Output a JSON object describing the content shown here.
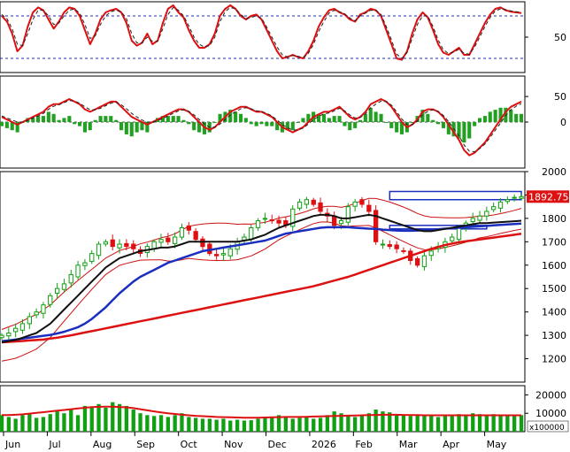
{
  "chart_data": {
    "type": "line",
    "x_labels": [
      "Jun",
      "Jul",
      "Aug",
      "Sep",
      "Oct",
      "Nov",
      "Dec",
      "2026",
      "Feb",
      "Mar",
      "Apr",
      "May"
    ],
    "panels": {
      "stochastic": {
        "type": "line",
        "ylim": [
          0,
          100
        ],
        "yticks": [
          {
            "v": 50,
            "label": "50"
          }
        ],
        "levels": [
          80,
          20
        ],
        "series": [
          {
            "color": "#dd1111",
            "values": [
              80,
              72,
              55,
              30,
              38,
              65,
              85,
              92,
              88,
              75,
              62,
              72,
              85,
              92,
              90,
              80,
              60,
              40,
              55,
              75,
              85,
              88,
              90,
              85,
              70,
              45,
              38,
              42,
              55,
              40,
              45,
              70,
              90,
              95,
              85,
              78,
              60,
              45,
              35,
              35,
              40,
              55,
              80,
              90,
              95,
              90,
              80,
              75,
              80,
              82,
              75,
              60,
              45,
              30,
              20,
              22,
              25,
              22,
              20,
              30,
              45,
              65,
              78,
              88,
              90,
              85,
              82,
              75,
              72,
              82,
              85,
              90,
              88,
              80,
              60,
              40,
              20,
              18,
              30,
              55,
              75,
              85,
              78,
              60,
              40,
              28,
              25,
              30,
              35,
              25,
              25,
              40,
              55,
              70,
              82,
              90,
              92,
              88,
              86,
              85,
              84
            ]
          },
          {
            "color": "#222222",
            "dashed": true,
            "values": [
              82,
              76,
              62,
              40,
              38,
              55,
              75,
              88,
              88,
              80,
              68,
              70,
              80,
              88,
              90,
              84,
              68,
              48,
              52,
              68,
              80,
              86,
              88,
              86,
              76,
              55,
              42,
              42,
              50,
              44,
              44,
              62,
              82,
              92,
              88,
              80,
              66,
              50,
              40,
              36,
              38,
              50,
              72,
              86,
              92,
              90,
              82,
              76,
              78,
              80,
              77,
              64,
              50,
              36,
              25,
              22,
              24,
              23,
              21,
              27,
              40,
              58,
              72,
              84,
              88,
              86,
              83,
              77,
              73,
              80,
              84,
              88,
              88,
              82,
              65,
              46,
              26,
              20,
              28,
              48,
              68,
              80,
              80,
              65,
              46,
              32,
              27,
              29,
              33,
              27,
              26,
              36,
              50,
              65,
              78,
              87,
              90,
              89,
              87,
              86,
              85
            ]
          }
        ]
      },
      "macd": {
        "type": "line+bar",
        "ylim": [
          -90,
          90
        ],
        "yticks": [
          {
            "v": 50,
            "label": "50"
          },
          {
            "v": 0,
            "label": "0"
          }
        ],
        "zero_line": true,
        "series": [
          {
            "color": "#dd1111",
            "values": [
              10,
              5,
              0,
              -5,
              0,
              5,
              10,
              15,
              20,
              30,
              35,
              35,
              40,
              45,
              40,
              35,
              25,
              20,
              25,
              30,
              35,
              40,
              40,
              30,
              20,
              10,
              5,
              0,
              -5,
              0,
              5,
              10,
              15,
              20,
              25,
              25,
              20,
              10,
              0,
              -10,
              -15,
              -10,
              0,
              10,
              20,
              25,
              30,
              30,
              25,
              20,
              20,
              15,
              10,
              0,
              -10,
              -15,
              -20,
              -15,
              -10,
              0,
              10,
              15,
              20,
              20,
              25,
              30,
              20,
              10,
              5,
              10,
              20,
              35,
              40,
              45,
              40,
              30,
              15,
              0,
              -10,
              -5,
              5,
              20,
              25,
              25,
              20,
              10,
              -5,
              -20,
              -35,
              -55,
              -65,
              -60,
              -50,
              -40,
              -25,
              -10,
              5,
              20,
              30,
              35,
              40
            ]
          },
          {
            "color": "#222222",
            "dashed": true,
            "values": [
              12,
              8,
              4,
              0,
              0,
              3,
              8,
              12,
              17,
              25,
              31,
              34,
              38,
              42,
              41,
              37,
              30,
              24,
              24,
              27,
              32,
              37,
              39,
              34,
              26,
              17,
              10,
              4,
              0,
              0,
              3,
              7,
              12,
              17,
              22,
              24,
              21,
              14,
              5,
              -4,
              -10,
              -10,
              -4,
              5,
              14,
              20,
              26,
              28,
              26,
              22,
              21,
              17,
              12,
              4,
              -5,
              -11,
              -16,
              -15,
              -12,
              -4,
              5,
              11,
              16,
              18,
              22,
              27,
              22,
              14,
              8,
              9,
              16,
              28,
              35,
              41,
              40,
              33,
              20,
              6,
              -5,
              -5,
              2,
              14,
              21,
              24,
              21,
              13,
              1,
              -13,
              -27,
              -45,
              -57,
              -58,
              -52,
              -43,
              -30,
              -16,
              -2,
              13,
              24,
              31,
              36
            ]
          }
        ],
        "histogram_color": "#22a022"
      },
      "price": {
        "type": "candlestick",
        "ylim": [
          1100,
          2000
        ],
        "yticks": [
          1200,
          1300,
          1400,
          1500,
          1600,
          1700,
          1800,
          1900,
          2000
        ],
        "last_value": "1892.750",
        "close": [
          1300,
          1310,
          1330,
          1350,
          1380,
          1400,
          1430,
          1470,
          1500,
          1520,
          1560,
          1600,
          1610,
          1650,
          1690,
          1700,
          1680,
          1690,
          1680,
          1670,
          1650,
          1680,
          1700,
          1710,
          1700,
          1720,
          1760,
          1750,
          1710,
          1680,
          1650,
          1640,
          1650,
          1670,
          1700,
          1720,
          1760,
          1790,
          1800,
          1790,
          1780,
          1770,
          1840,
          1870,
          1880,
          1860,
          1830,
          1810,
          1770,
          1790,
          1850,
          1870,
          1860,
          1830,
          1700,
          1690,
          1680,
          1670,
          1660,
          1620,
          1600,
          1640,
          1660,
          1680,
          1700,
          1720,
          1760,
          1780,
          1800,
          1810,
          1830,
          1850,
          1870,
          1880,
          1890,
          1893
        ],
        "ma_black": [
          1270,
          1275,
          1280,
          1290,
          1300,
          1310,
          1330,
          1350,
          1380,
          1410,
          1440,
          1470,
          1500,
          1530,
          1560,
          1590,
          1610,
          1630,
          1640,
          1650,
          1660,
          1665,
          1670,
          1675,
          1675,
          1680,
          1690,
          1700,
          1700,
          1700,
          1700,
          1700,
          1700,
          1700,
          1700,
          1705,
          1710,
          1720,
          1730,
          1745,
          1760,
          1770,
          1780,
          1790,
          1800,
          1810,
          1815,
          1815,
          1810,
          1800,
          1800,
          1805,
          1810,
          1815,
          1810,
          1800,
          1790,
          1780,
          1770,
          1760,
          1750,
          1745,
          1745,
          1750,
          1755,
          1760,
          1765,
          1770,
          1775,
          1780,
          1780,
          1782,
          1784,
          1786,
          1788,
          1790
        ],
        "ma_blue": [
          1275,
          1278,
          1282,
          1286,
          1290,
          1294,
          1298,
          1302,
          1308,
          1315,
          1325,
          1335,
          1350,
          1370,
          1395,
          1420,
          1450,
          1480,
          1505,
          1530,
          1550,
          1565,
          1580,
          1595,
          1610,
          1620,
          1630,
          1640,
          1650,
          1660,
          1665,
          1670,
          1675,
          1680,
          1685,
          1690,
          1695,
          1700,
          1705,
          1715,
          1725,
          1735,
          1740,
          1745,
          1750,
          1755,
          1760,
          1762,
          1762,
          1762,
          1762,
          1760,
          1758,
          1756,
          1755,
          1752,
          1750,
          1748,
          1747,
          1747,
          1748,
          1750,
          1752,
          1754,
          1756,
          1758,
          1760,
          1762,
          1764,
          1766,
          1768,
          1770,
          1772,
          1774,
          1776,
          1778
        ],
        "ma_red": [
          1270,
          1272,
          1274,
          1276,
          1278,
          1280,
          1282,
          1286,
          1290,
          1295,
          1300,
          1306,
          1312,
          1318,
          1324,
          1330,
          1336,
          1342,
          1348,
          1354,
          1360,
          1366,
          1372,
          1378,
          1384,
          1390,
          1396,
          1402,
          1408,
          1414,
          1420,
          1426,
          1432,
          1438,
          1444,
          1450,
          1456,
          1462,
          1468,
          1474,
          1480,
          1486,
          1492,
          1498,
          1504,
          1510,
          1518,
          1526,
          1534,
          1542,
          1550,
          1560,
          1570,
          1580,
          1590,
          1600,
          1610,
          1620,
          1630,
          1640,
          1650,
          1660,
          1670,
          1678,
          1686,
          1692,
          1698,
          1702,
          1706,
          1710,
          1714,
          1718,
          1722,
          1726,
          1730,
          1734
        ],
        "resistance_boxes": [
          {
            "from_index": 56,
            "to_index": 75,
            "low": 1880,
            "high": 1915
          },
          {
            "from_index": 56,
            "to_index": 70,
            "low": 1755,
            "high": 1770
          }
        ]
      },
      "volume": {
        "type": "bar",
        "ylim": [
          0,
          25000
        ],
        "yticks": [
          {
            "v": 20000,
            "label": "20000"
          },
          {
            "v": 10000,
            "label": "10000"
          }
        ],
        "scale_label": "x100000",
        "values": [
          9000,
          8000,
          7000,
          9000,
          10000,
          7500,
          8000,
          9500,
          11000,
          10000,
          12000,
          9000,
          14000,
          13000,
          15000,
          13000,
          16000,
          15000,
          14000,
          12000,
          10000,
          9000,
          8500,
          9000,
          8000,
          9000,
          10000,
          8000,
          7500,
          7000,
          7000,
          6500,
          7000,
          6000,
          6500,
          6000,
          6200,
          7000,
          8000,
          7500,
          9000,
          8000,
          7000,
          7500,
          8000,
          7000,
          7500,
          9000,
          11000,
          10000,
          8500,
          8000,
          9000,
          10000,
          12000,
          11000,
          10500,
          9500,
          9000,
          8500,
          9000,
          9000,
          8500,
          8000,
          8500,
          9000,
          9500,
          9000,
          10000,
          9500,
          9000,
          9500,
          9000,
          8500,
          8800,
          9000
        ],
        "avg": [
          9000,
          9000,
          9200,
          9400,
          9800,
          10200,
          10600,
          11000,
          11400,
          11800,
          12200,
          12600,
          13000,
          13300,
          13500,
          13600,
          13600,
          13400,
          13200,
          12800,
          12200,
          11600,
          11000,
          10500,
          10000,
          9600,
          9200,
          8900,
          8600,
          8400,
          8200,
          8000,
          7900,
          7800,
          7700,
          7600,
          7600,
          7600,
          7700,
          7800,
          7900,
          8000,
          8000,
          8000,
          8100,
          8200,
          8300,
          8400,
          8500,
          8600,
          8700,
          8800,
          8900,
          9000,
          9100,
          9200,
          9200,
          9200,
          9100,
          9000,
          9000,
          8900,
          8900,
          8900,
          8900,
          8900,
          8900,
          8900,
          8900,
          8900,
          8900,
          8900,
          8900,
          8900,
          8900,
          8900
        ]
      }
    }
  }
}
